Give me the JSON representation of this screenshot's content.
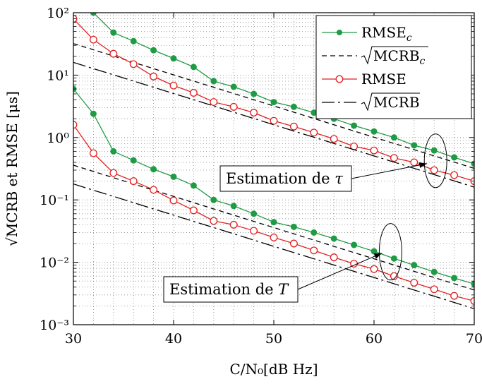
{
  "chart_data": {
    "type": "line",
    "xlabel": "C/N₀[dB Hz]",
    "ylabel": "√MCRB et RMSE [μs]",
    "x_ticks": [
      "30",
      "40",
      "50",
      "60",
      "70"
    ],
    "y_ticks": [
      "10⁻³",
      "10⁻²",
      "10⁻¹",
      "10⁰",
      "10¹",
      "10²"
    ],
    "xlim": [
      30,
      70
    ],
    "ylim": [
      0.001,
      100
    ],
    "y_scale": "log",
    "grid": "dotted",
    "legend_position": "top-right",
    "x": [
      30,
      32,
      34,
      36,
      38,
      40,
      42,
      44,
      46,
      48,
      50,
      52,
      54,
      56,
      58,
      60,
      62,
      64,
      66,
      68,
      70
    ],
    "series": [
      {
        "name": "RMSE_c",
        "group": "tau",
        "style": "green-dot",
        "color": "#1e9b44",
        "values": [
          140,
          100,
          48,
          35,
          25,
          18.5,
          13.5,
          8,
          6.5,
          5,
          3.7,
          3.1,
          2.5,
          2,
          1.55,
          1.25,
          1,
          0.75,
          0.62,
          0.48,
          0.38
        ]
      },
      {
        "name": "√MCRB_c",
        "group": "tau",
        "style": "dashed",
        "color": "#000000",
        "values": [
          32,
          25.5,
          20.2,
          16,
          12.7,
          10.1,
          8.03,
          6.38,
          5.07,
          4.03,
          3.2,
          2.54,
          2.02,
          1.6,
          1.27,
          1.01,
          0.803,
          0.638,
          0.507,
          0.403,
          0.32
        ]
      },
      {
        "name": "RMSE",
        "group": "tau",
        "style": "red-circle",
        "color": "#e02020",
        "values": [
          80,
          37,
          22,
          15,
          9.5,
          6.8,
          5.2,
          3.7,
          3.1,
          2.5,
          1.85,
          1.5,
          1.2,
          0.95,
          0.72,
          0.62,
          0.47,
          0.4,
          0.3,
          0.25,
          0.2
        ]
      },
      {
        "name": "√MCRB",
        "group": "tau",
        "style": "dash-dot",
        "color": "#000000",
        "values": [
          16,
          12.7,
          10.1,
          8.03,
          6.38,
          5.07,
          4.03,
          3.2,
          2.54,
          2.02,
          1.6,
          1.27,
          1.01,
          0.803,
          0.638,
          0.507,
          0.403,
          0.32,
          0.254,
          0.202,
          0.16
        ]
      },
      {
        "name": "RMSE_c",
        "group": "T",
        "style": "green-dot",
        "color": "#1e9b44",
        "values": [
          6,
          2.4,
          0.6,
          0.43,
          0.31,
          0.235,
          0.17,
          0.1,
          0.08,
          0.06,
          0.044,
          0.037,
          0.03,
          0.024,
          0.019,
          0.015,
          0.0115,
          0.009,
          0.007,
          0.0056,
          0.0045
        ]
      },
      {
        "name": "√MCRB_c",
        "group": "T",
        "style": "dashed",
        "color": "#000000",
        "values": [
          0.36,
          0.286,
          0.227,
          0.18,
          0.143,
          0.114,
          0.0903,
          0.0717,
          0.057,
          0.0453,
          0.036,
          0.0286,
          0.0227,
          0.018,
          0.0143,
          0.0114,
          0.00903,
          0.00717,
          0.0057,
          0.00453,
          0.0036
        ]
      },
      {
        "name": "RMSE",
        "group": "T",
        "style": "red-circle",
        "color": "#e02020",
        "values": [
          1.6,
          0.56,
          0.27,
          0.2,
          0.145,
          0.098,
          0.068,
          0.046,
          0.04,
          0.032,
          0.025,
          0.02,
          0.0155,
          0.012,
          0.0095,
          0.0078,
          0.006,
          0.0047,
          0.0037,
          0.0029,
          0.0024
        ]
      },
      {
        "name": "√MCRB",
        "group": "T",
        "style": "dash-dot",
        "color": "#000000",
        "values": [
          0.18,
          0.143,
          0.114,
          0.0903,
          0.0717,
          0.057,
          0.0453,
          0.036,
          0.0286,
          0.0227,
          0.018,
          0.0143,
          0.0114,
          0.00903,
          0.00717,
          0.0057,
          0.00453,
          0.0036,
          0.00286,
          0.00227,
          0.0018
        ]
      }
    ],
    "legend": [
      {
        "label": "RMSE",
        "sub": "c",
        "sqrt": false,
        "style": "green-dot",
        "color": "#1e9b44"
      },
      {
        "label": "MCRB",
        "sub": "c",
        "sqrt": true,
        "style": "dashed",
        "color": "#000000"
      },
      {
        "label": "RMSE",
        "sub": "",
        "sqrt": false,
        "style": "red-circle",
        "color": "#e02020"
      },
      {
        "label": "MCRB",
        "sub": "",
        "sqrt": true,
        "style": "dash-dot",
        "color": "#000000"
      }
    ],
    "annotations": [
      {
        "text": "Estimation de ",
        "symbol": "τ",
        "group": "tau",
        "ellipse_x": 66,
        "ellipse_y": 0.55
      },
      {
        "text": "Estimation de ",
        "symbol": "T",
        "group": "T",
        "ellipse_x": 62,
        "ellipse_y": 0.01
      }
    ]
  }
}
